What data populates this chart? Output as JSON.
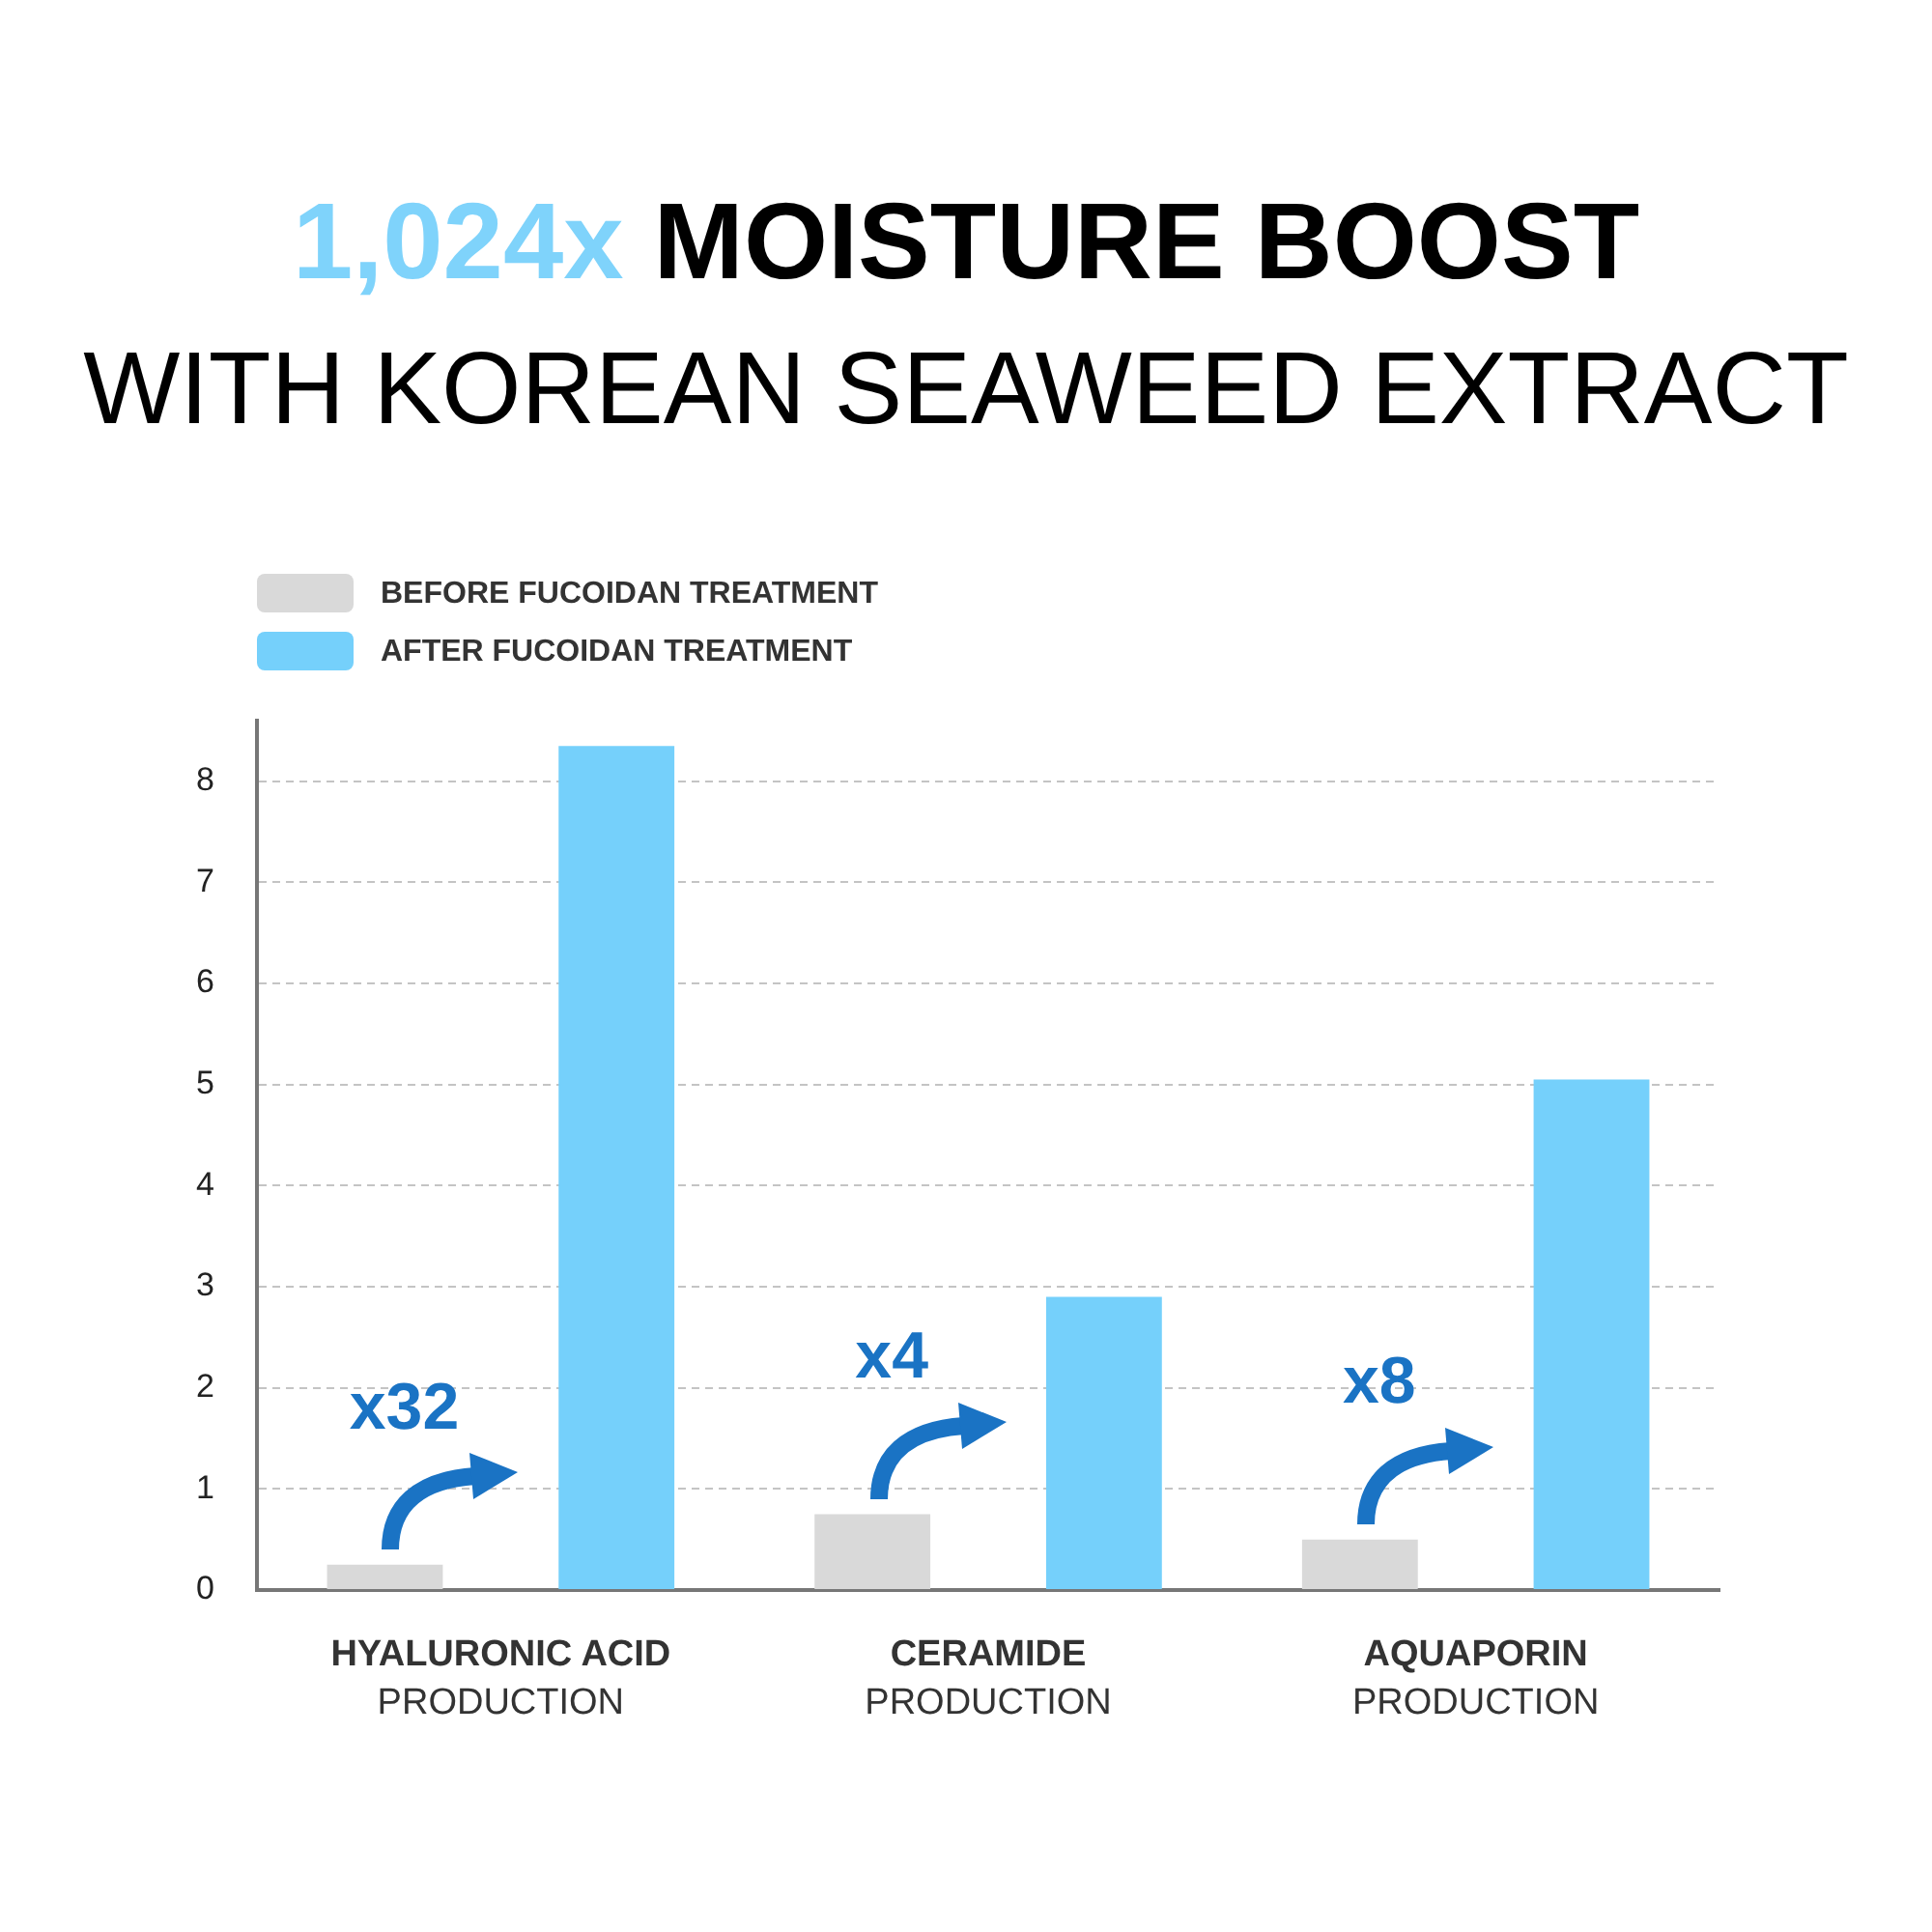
{
  "chart_data": {
    "type": "bar",
    "title": "1,024x MOISTURE BOOST",
    "subtitle": "WITH KOREAN SEAWEED EXTRACT",
    "categories": [
      "HYALURONIC ACID\nPRODUCTION",
      "CERAMIDE\nPRODUCTION",
      "AQUAPORIN\nPRODUCTION"
    ],
    "series": [
      {
        "name": "BEFORE FUCOIDAN TREATMENT",
        "color": "#d9d9d9",
        "values": [
          0.25,
          0.75,
          0.5
        ]
      },
      {
        "name": "AFTER FUCOIDAN TREATMENT",
        "color": "#75d0fb",
        "values": [
          8.35,
          2.9,
          5.05
        ]
      }
    ],
    "ylim": [
      0,
      8.6
    ],
    "yticks": [
      0,
      1,
      2,
      3,
      4,
      5,
      6,
      7,
      8
    ],
    "grid": "y",
    "legend": "top left",
    "annotations": [
      "x32",
      "x4",
      "x8"
    ]
  }
}
